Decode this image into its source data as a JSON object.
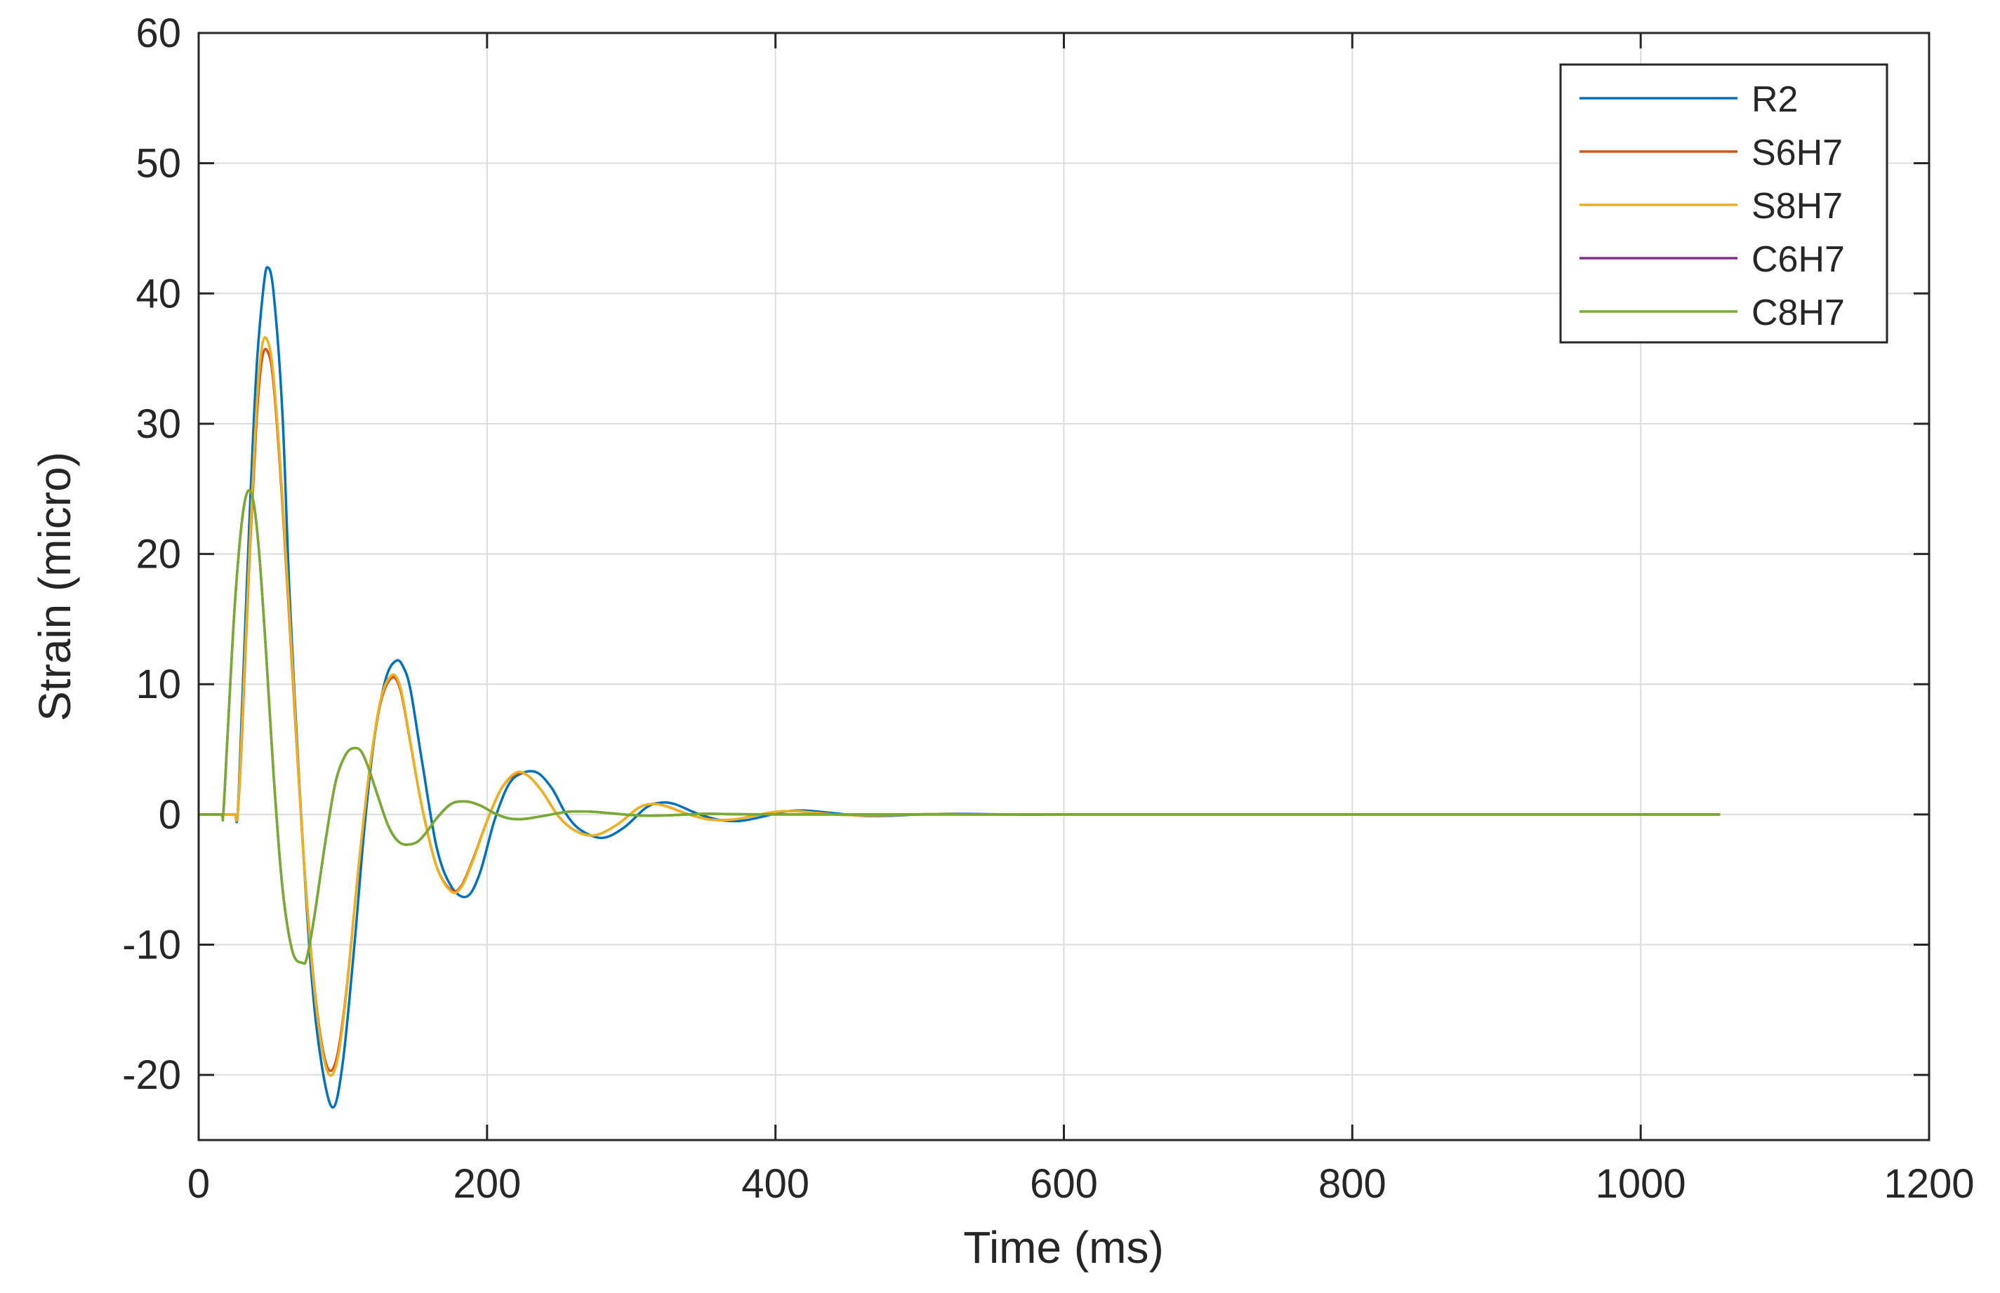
{
  "chart_data": {
    "type": "line",
    "title": "",
    "xlabel": "Time (ms)",
    "ylabel": "Strain (micro)",
    "xlim": [
      0,
      1200
    ],
    "ylim": [
      -25,
      60
    ],
    "xticks": [
      0,
      200,
      400,
      600,
      800,
      1000,
      1200
    ],
    "yticks": [
      -20,
      -10,
      0,
      10,
      20,
      30,
      40,
      50,
      60
    ],
    "grid": true,
    "legend_position": "top-right",
    "series": [
      {
        "name": "R2",
        "color": "#0072BD",
        "x": [
          0,
          20,
          25,
          27,
          30,
          35,
          40,
          45,
          48,
          52,
          58,
          63,
          70,
          78,
          85,
          93,
          100,
          108,
          115,
          122,
          130,
          137,
          142,
          147,
          155,
          165,
          175,
          186,
          195,
          205,
          215,
          225,
          235,
          245,
          255,
          265,
          280,
          295,
          310,
          320,
          330,
          345,
          360,
          375,
          390,
          405,
          420,
          440,
          460,
          480,
          500,
          520,
          540,
          560,
          580,
          600,
          700,
          800,
          900,
          1000,
          1055
        ],
        "y": [
          0,
          0,
          0,
          0,
          8,
          22,
          34,
          40.5,
          42,
          40,
          31,
          17,
          2,
          -12,
          -19,
          -22.5,
          -19,
          -10,
          -1,
          6,
          10.5,
          11.8,
          11.3,
          9.5,
          4,
          -2.5,
          -5.5,
          -6.3,
          -4.5,
          -0.5,
          2.3,
          3.2,
          3.2,
          2,
          0,
          -1.2,
          -1.8,
          -1,
          0.5,
          0.9,
          0.8,
          0.1,
          -0.4,
          -0.5,
          -0.2,
          0.2,
          0.3,
          0.1,
          -0.1,
          -0.1,
          0,
          0.05,
          0.03,
          0,
          -0.02,
          0,
          0,
          0,
          0,
          0,
          0
        ]
      },
      {
        "name": "S6H7",
        "color": "#D95319",
        "x": [
          0,
          20,
          25,
          27,
          30,
          35,
          40,
          44,
          48,
          52,
          58,
          65,
          72,
          80,
          88,
          95,
          102,
          110,
          118,
          126,
          134,
          140,
          146,
          155,
          165,
          175,
          182,
          190,
          200,
          210,
          220,
          228,
          238,
          250,
          262,
          275,
          290,
          305,
          315,
          325,
          340,
          355,
          370,
          385,
          400,
          415,
          430,
          450,
          480,
          510,
          540,
          580,
          650,
          800,
          1000,
          1055
        ],
        "y": [
          0,
          0,
          0,
          0,
          6,
          19,
          30,
          35,
          35.5,
          33,
          24,
          11,
          -2,
          -13,
          -19,
          -19,
          -14,
          -5,
          3,
          8.5,
          10.5,
          9.5,
          6,
          0.5,
          -4,
          -5.8,
          -5.5,
          -3.5,
          -0.5,
          2,
          3.1,
          3,
          1.8,
          -0.2,
          -1.3,
          -1.6,
          -0.8,
          0.5,
          0.8,
          0.6,
          0,
          -0.4,
          -0.4,
          -0.1,
          0.2,
          0.25,
          0.1,
          -0.05,
          -0.05,
          0.03,
          0,
          0,
          0,
          0,
          0,
          0
        ]
      },
      {
        "name": "S8H7",
        "color": "#EDB120",
        "x": [
          0,
          20,
          25,
          27,
          30,
          35,
          40,
          44,
          48,
          52,
          58,
          65,
          72,
          80,
          88,
          95,
          102,
          110,
          118,
          126,
          134,
          140,
          146,
          155,
          165,
          175,
          182,
          190,
          200,
          210,
          220,
          228,
          238,
          250,
          262,
          275,
          290,
          305,
          315,
          325,
          340,
          355,
          370,
          385,
          400,
          415,
          430,
          450,
          480,
          510,
          540,
          580,
          650,
          800,
          1000,
          1055
        ],
        "y": [
          0,
          0,
          0,
          0,
          6.5,
          19.5,
          31,
          36,
          36.3,
          33.5,
          24.5,
          11.5,
          -2,
          -13.2,
          -19.3,
          -19.4,
          -14.2,
          -5,
          3,
          8.7,
          10.7,
          9.7,
          6.1,
          0.5,
          -4,
          -5.9,
          -5.6,
          -3.6,
          -0.5,
          2,
          3.2,
          3,
          1.8,
          -0.2,
          -1.3,
          -1.6,
          -0.8,
          0.5,
          0.8,
          0.6,
          0,
          -0.4,
          -0.4,
          -0.1,
          0.2,
          0.25,
          0.1,
          -0.05,
          -0.05,
          0.03,
          0,
          0,
          0,
          0,
          0,
          0
        ]
      },
      {
        "name": "C6H7",
        "color": "#7E2F8E",
        "x": [
          0,
          15,
          17,
          20,
          25,
          30,
          34,
          38,
          42,
          47,
          52,
          58,
          65,
          72,
          75,
          80,
          88,
          95,
          102,
          108,
          113,
          118,
          124,
          132,
          140,
          150,
          157,
          165,
          175,
          185,
          195,
          205,
          215,
          225,
          240,
          255,
          270,
          280,
          295,
          310,
          330,
          350,
          370,
          400,
          450,
          500,
          600,
          800,
          1000,
          1055
        ],
        "y": [
          0,
          0,
          0,
          6,
          16,
          22.5,
          24.8,
          24,
          20,
          12,
          3,
          -5.5,
          -10.5,
          -11.4,
          -11,
          -8,
          -2,
          2.5,
          4.6,
          5.1,
          4.8,
          3.5,
          1.5,
          -1,
          -2.2,
          -2.2,
          -1.5,
          -0.3,
          0.8,
          1,
          0.7,
          0.1,
          -0.3,
          -0.35,
          -0.1,
          0.2,
          0.22,
          0.15,
          0,
          -0.1,
          -0.05,
          0.05,
          0.02,
          0,
          0,
          0,
          0,
          0,
          0,
          0
        ]
      },
      {
        "name": "C8H7",
        "color": "#77AC30",
        "x": [
          0,
          15,
          17,
          20,
          25,
          30,
          34,
          38,
          42,
          47,
          52,
          58,
          65,
          72,
          75,
          80,
          88,
          95,
          102,
          108,
          113,
          118,
          124,
          132,
          140,
          150,
          157,
          165,
          175,
          185,
          195,
          205,
          215,
          225,
          240,
          255,
          270,
          280,
          295,
          310,
          330,
          350,
          370,
          400,
          450,
          500,
          600,
          800,
          1000,
          1055
        ],
        "y": [
          0,
          0,
          0,
          6,
          16,
          22.5,
          24.8,
          24,
          20,
          12,
          3,
          -5.5,
          -10.5,
          -11.4,
          -11,
          -8,
          -2,
          2.5,
          4.6,
          5.1,
          4.8,
          3.5,
          1.5,
          -1,
          -2.2,
          -2.2,
          -1.5,
          -0.3,
          0.8,
          1,
          0.7,
          0.1,
          -0.3,
          -0.35,
          -0.1,
          0.2,
          0.22,
          0.15,
          0,
          -0.1,
          -0.05,
          0.05,
          0.02,
          0,
          0,
          0,
          0,
          0,
          0,
          0
        ]
      }
    ]
  }
}
